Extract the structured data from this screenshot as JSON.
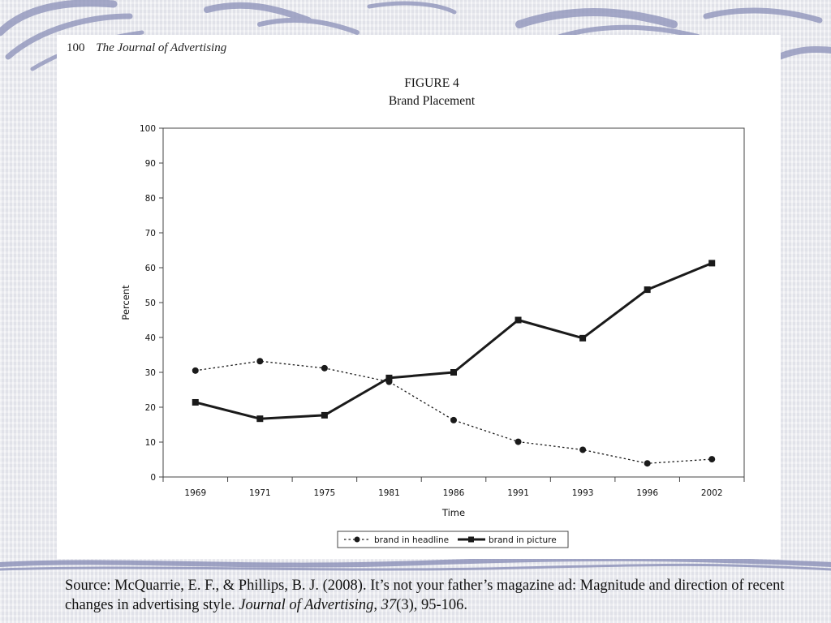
{
  "header": {
    "page_number": "100",
    "journal_title": "The Journal of Advertising"
  },
  "chart_data": {
    "type": "line",
    "title": "FIGURE 4",
    "subtitle": "Brand Placement",
    "xlabel": "Time",
    "ylabel": "Percent",
    "categories": [
      "1969",
      "1971",
      "1975",
      "1981",
      "1986",
      "1991",
      "1993",
      "1996",
      "2002"
    ],
    "ylim": [
      0,
      100
    ],
    "yticks": [
      "0",
      "10",
      "20",
      "30",
      "40",
      "50",
      "60",
      "70",
      "80",
      "90",
      "100"
    ],
    "grid": false,
    "legend_position": "bottom",
    "series": [
      {
        "name": "brand in headline",
        "style": "dotted",
        "marker": "circle",
        "values": [
          30.5,
          33.2,
          31.2,
          27.3,
          16.3,
          10.1,
          7.8,
          3.9,
          5.1
        ]
      },
      {
        "name": "brand in picture",
        "style": "solid",
        "marker": "square",
        "values": [
          21.4,
          16.7,
          17.7,
          28.4,
          30.0,
          45.0,
          39.8,
          53.7,
          61.3
        ]
      }
    ]
  },
  "source": {
    "prefix": "Source:  McQuarrie, E. F., & Phillips, B. J. (2008). It’s not your father’s magazine ad: Magnitude and direction of recent changes in advertising style. ",
    "journal": "Journal of Advertising",
    "sep": ", ",
    "volume": "37",
    "rest": "(3), 95-106."
  },
  "colors": {
    "line": "#1a1a1a",
    "swirl": "#8a8fb8",
    "panel": "#ffffff"
  }
}
